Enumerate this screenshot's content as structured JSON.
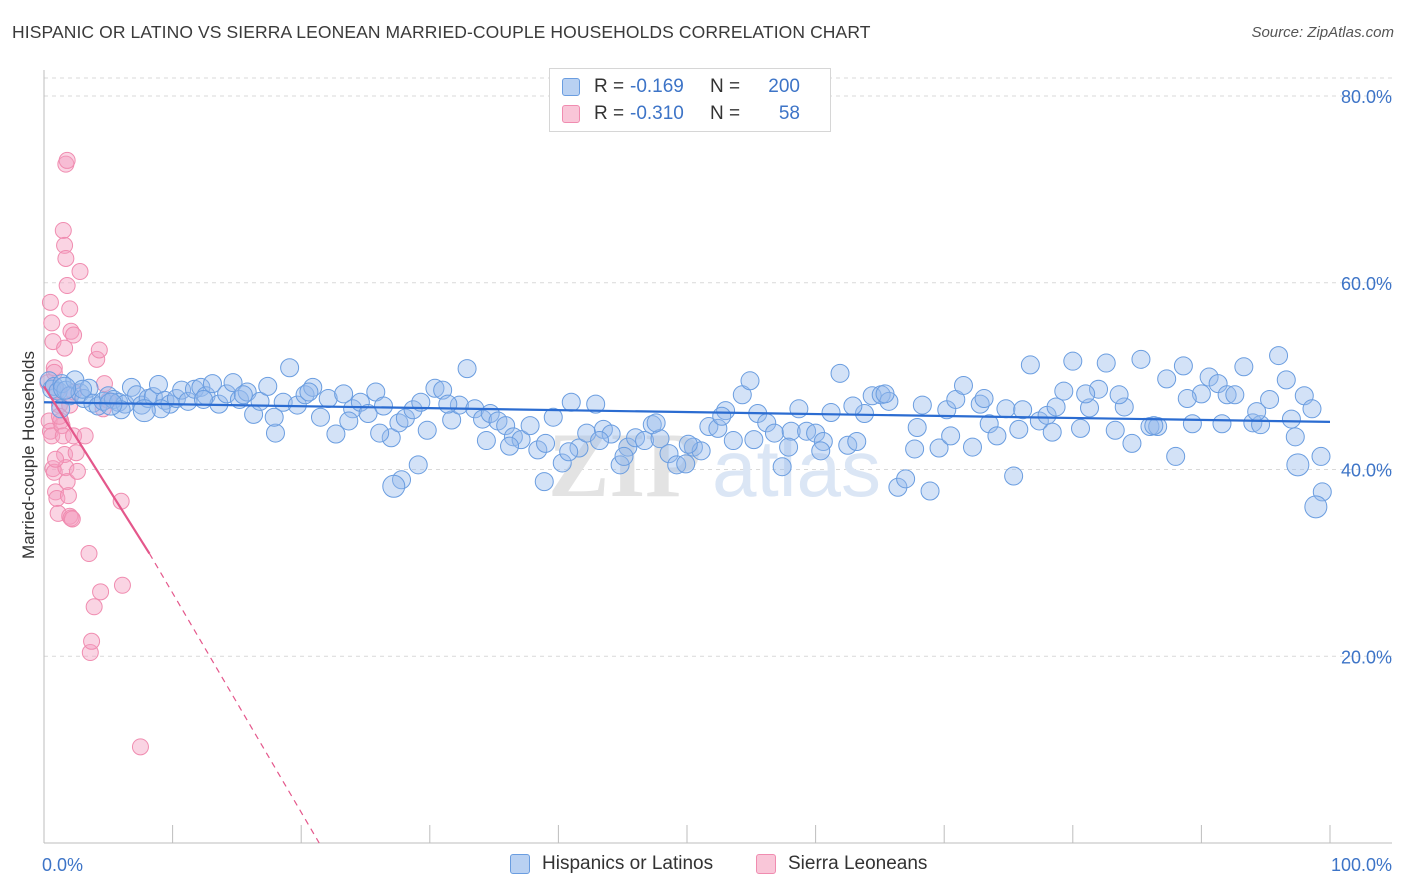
{
  "title": "HISPANIC OR LATINO VS SIERRA LEONEAN MARRIED-COUPLE HOUSEHOLDS CORRELATION CHART",
  "source": "Source: ZipAtlas.com",
  "watermark": {
    "zip": "ZIP",
    "atlas": "atlas"
  },
  "colors": {
    "blue": "#6a9de0",
    "blue_line": "#2b6cd1",
    "pink": "#f08cb0",
    "pink_line": "#e4578b",
    "axis_text": "#3d74c7",
    "grid": "#d9d9d9"
  },
  "legend": {
    "rows": [
      {
        "r_label": "R =",
        "r_value": "-0.169",
        "n_label": "N =",
        "n_value": "200"
      },
      {
        "r_label": "R =",
        "r_value": "-0.310",
        "n_label": "N =",
        "n_value": "58"
      }
    ]
  },
  "bottom_legend": [
    {
      "label": "Hispanics or Latinos"
    },
    {
      "label": "Sierra Leoneans"
    }
  ],
  "chart_data": {
    "type": "scatter",
    "title": "HISPANIC OR LATINO VS SIERRA LEONEAN MARRIED-COUPLE HOUSEHOLDS CORRELATION CHART",
    "xlabel": "",
    "ylabel": "Married-couple Households",
    "xlim": [
      0,
      100
    ],
    "ylim": [
      0,
      82
    ],
    "x_tick_labels": [
      "0.0%",
      "100.0%"
    ],
    "y_ticks": [
      20,
      40,
      60,
      80
    ],
    "y_tick_labels": [
      "20.0%",
      "40.0%",
      "60.0%",
      "80.0%"
    ],
    "grid": true,
    "legend_position": "top-center",
    "series": [
      {
        "name": "Hispanics or Latinos",
        "r": -0.169,
        "n": 200,
        "trend": {
          "x": [
            0,
            100
          ],
          "y": [
            47.2,
            45.1
          ],
          "dashed_from": null
        },
        "points": [
          [
            0.4,
            49.5
          ],
          [
            0.6,
            48.6
          ],
          [
            0.8,
            48.9
          ],
          [
            1.1,
            48.4
          ],
          [
            1.4,
            49.2
          ],
          [
            1.7,
            48.5
          ],
          [
            2,
            47.9
          ],
          [
            2.4,
            49.6
          ],
          [
            2.8,
            48.2
          ],
          [
            3.1,
            47.6
          ],
          [
            3.5,
            48.7
          ],
          [
            3.8,
            47.1
          ],
          [
            4.2,
            46.8
          ],
          [
            4.6,
            47.3
          ],
          [
            5,
            47.9
          ],
          [
            5.4,
            47.5
          ],
          [
            5.8,
            47.2
          ],
          [
            6.3,
            47.0
          ],
          [
            6.8,
            48.8
          ],
          [
            7.2,
            48.0
          ],
          [
            7.6,
            46.9
          ],
          [
            8.1,
            47.6
          ],
          [
            8.5,
            47.8
          ],
          [
            8.9,
            49.1
          ],
          [
            9.4,
            47.4
          ],
          [
            9.8,
            47.0
          ],
          [
            10.3,
            47.6
          ],
          [
            10.7,
            48.5
          ],
          [
            11.2,
            47.3
          ],
          [
            11.7,
            48.6
          ],
          [
            12.2,
            48.8
          ],
          [
            12.6,
            47.9
          ],
          [
            13.1,
            49.2
          ],
          [
            13.6,
            47.0
          ],
          [
            14.2,
            48.1
          ],
          [
            14.7,
            49.3
          ],
          [
            15.2,
            47.5
          ],
          [
            15.8,
            48.3
          ],
          [
            16.3,
            45.9
          ],
          [
            16.8,
            47.3
          ],
          [
            17.4,
            48.9
          ],
          [
            18,
            43.9
          ],
          [
            18.6,
            47.2
          ],
          [
            19.1,
            50.9
          ],
          [
            19.7,
            46.9
          ],
          [
            20.3,
            48.0
          ],
          [
            20.9,
            48.8
          ],
          [
            21.5,
            45.6
          ],
          [
            22.1,
            47.6
          ],
          [
            22.7,
            43.8
          ],
          [
            23.3,
            48.1
          ],
          [
            24,
            46.5
          ],
          [
            24.6,
            47.2
          ],
          [
            25.2,
            46.0
          ],
          [
            25.8,
            48.3
          ],
          [
            26.4,
            46.8
          ],
          [
            27,
            43.4
          ],
          [
            27.6,
            45.0
          ],
          [
            28.1,
            45.5
          ],
          [
            28.7,
            46.4
          ],
          [
            29.3,
            47.2
          ],
          [
            29.8,
            44.2
          ],
          [
            30.4,
            48.7
          ],
          [
            31,
            48.5
          ],
          [
            31.7,
            45.3
          ],
          [
            32.3,
            46.9
          ],
          [
            32.9,
            50.8
          ],
          [
            33.5,
            46.5
          ],
          [
            34.1,
            45.4
          ],
          [
            34.7,
            46.0
          ],
          [
            35.3,
            45.2
          ],
          [
            35.9,
            44.7
          ],
          [
            36.5,
            43.5
          ],
          [
            37.1,
            43.2
          ],
          [
            37.8,
            44.7
          ],
          [
            38.4,
            42.1
          ],
          [
            39,
            42.8
          ],
          [
            39.6,
            45.6
          ],
          [
            40.3,
            40.7
          ],
          [
            41,
            47.2
          ],
          [
            41.6,
            42.3
          ],
          [
            42.2,
            43.9
          ],
          [
            42.9,
            47.0
          ],
          [
            43.5,
            44.3
          ],
          [
            44.1,
            43.8
          ],
          [
            44.8,
            40.5
          ],
          [
            45.4,
            42.4
          ],
          [
            46,
            43.4
          ],
          [
            46.7,
            43.1
          ],
          [
            47.3,
            44.8
          ],
          [
            47.9,
            43.3
          ],
          [
            48.6,
            41.7
          ],
          [
            49.2,
            40.5
          ],
          [
            49.9,
            40.6
          ],
          [
            50.5,
            42.4
          ],
          [
            51.1,
            42.0
          ],
          [
            51.7,
            44.6
          ],
          [
            52.4,
            44.4
          ],
          [
            53,
            46.3
          ],
          [
            53.6,
            43.1
          ],
          [
            54.3,
            48.0
          ],
          [
            54.9,
            49.5
          ],
          [
            55.5,
            46.0
          ],
          [
            56.2,
            45.0
          ],
          [
            56.8,
            43.9
          ],
          [
            57.4,
            40.3
          ],
          [
            58.1,
            44.1
          ],
          [
            58.7,
            46.5
          ],
          [
            59.3,
            44.1
          ],
          [
            60,
            43.9
          ],
          [
            60.6,
            43.0
          ],
          [
            61.2,
            46.1
          ],
          [
            61.9,
            50.3
          ],
          [
            62.5,
            42.6
          ],
          [
            63.2,
            43.0
          ],
          [
            63.8,
            46.0
          ],
          [
            64.4,
            47.9
          ],
          [
            65.1,
            48.0
          ],
          [
            65.7,
            47.3
          ],
          [
            66.4,
            38.1
          ],
          [
            67,
            39.0
          ],
          [
            67.7,
            42.2
          ],
          [
            68.3,
            46.9
          ],
          [
            68.9,
            37.7
          ],
          [
            69.6,
            42.3
          ],
          [
            70.2,
            46.4
          ],
          [
            70.9,
            47.5
          ],
          [
            71.5,
            49.0
          ],
          [
            72.2,
            42.4
          ],
          [
            72.8,
            47.0
          ],
          [
            73.5,
            44.9
          ],
          [
            74.1,
            43.6
          ],
          [
            74.8,
            46.5
          ],
          [
            75.4,
            39.3
          ],
          [
            76.1,
            46.4
          ],
          [
            76.7,
            51.2
          ],
          [
            77.4,
            45.2
          ],
          [
            78,
            45.8
          ],
          [
            78.7,
            46.7
          ],
          [
            79.3,
            48.4
          ],
          [
            80,
            51.6
          ],
          [
            80.6,
            44.4
          ],
          [
            81.3,
            46.6
          ],
          [
            82,
            48.6
          ],
          [
            82.6,
            51.4
          ],
          [
            83.3,
            44.2
          ],
          [
            84,
            46.7
          ],
          [
            84.6,
            42.8
          ],
          [
            85.3,
            51.8
          ],
          [
            86,
            44.6
          ],
          [
            86.6,
            44.6
          ],
          [
            87.3,
            49.7
          ],
          [
            88,
            41.4
          ],
          [
            88.6,
            51.1
          ],
          [
            89.3,
            44.9
          ],
          [
            90,
            48.1
          ],
          [
            90.6,
            49.9
          ],
          [
            91.3,
            49.2
          ],
          [
            92,
            48.0
          ],
          [
            92.6,
            48.0
          ],
          [
            93.3,
            51.0
          ],
          [
            94,
            45.0
          ],
          [
            94.6,
            44.8
          ],
          [
            95.3,
            47.5
          ],
          [
            96,
            52.2
          ],
          [
            96.6,
            49.6
          ],
          [
            97.3,
            43.5
          ],
          [
            98,
            47.9
          ],
          [
            98.6,
            46.5
          ],
          [
            99.3,
            41.4
          ],
          [
            1.3,
            46.5
          ],
          [
            3,
            48.6
          ],
          [
            6,
            46.4
          ],
          [
            9.1,
            46.5
          ],
          [
            12.4,
            47.5
          ],
          [
            15.5,
            48.0
          ],
          [
            17.9,
            45.6
          ],
          [
            20.6,
            48.3
          ],
          [
            23.7,
            45.2
          ],
          [
            26.1,
            43.9
          ],
          [
            27.8,
            38.9
          ],
          [
            29.1,
            40.5
          ],
          [
            31.4,
            47.0
          ],
          [
            34.4,
            43.1
          ],
          [
            36.2,
            42.5
          ],
          [
            38.9,
            38.7
          ],
          [
            40.8,
            41.9
          ],
          [
            43.2,
            43.1
          ],
          [
            45.1,
            41.4
          ],
          [
            47.6,
            45.0
          ],
          [
            50.1,
            42.7
          ],
          [
            52.7,
            45.7
          ],
          [
            55.2,
            43.2
          ],
          [
            57.9,
            42.4
          ],
          [
            60.4,
            42.0
          ],
          [
            62.9,
            46.8
          ],
          [
            65.4,
            48.1
          ],
          [
            67.9,
            44.5
          ],
          [
            70.5,
            43.6
          ],
          [
            73.1,
            47.6
          ],
          [
            75.8,
            44.3
          ],
          [
            78.4,
            44.0
          ],
          [
            81,
            48.1
          ],
          [
            83.6,
            48.0
          ],
          [
            86.3,
            44.7
          ],
          [
            88.9,
            47.6
          ],
          [
            91.6,
            44.9
          ],
          [
            94.3,
            46.2
          ],
          [
            97,
            45.4
          ],
          [
            99.4,
            37.6
          ]
        ],
        "large_points": [
          [
            1.6,
            48.7
          ],
          [
            5.2,
            47.0
          ],
          [
            7.8,
            46.3
          ],
          [
            27.2,
            38.2
          ],
          [
            98.9,
            36.0
          ],
          [
            97.5,
            40.5
          ]
        ]
      },
      {
        "name": "Sierra Leoneans",
        "r": -0.31,
        "n": 58,
        "trend": {
          "x": [
            0,
            8.2,
            21.4
          ],
          "y": [
            48.9,
            31.0,
            0
          ],
          "dashed_from": 8.2
        },
        "points": [
          [
            0.3,
            49.3
          ],
          [
            0.4,
            45.2
          ],
          [
            0.5,
            44.1
          ],
          [
            0.6,
            43.6
          ],
          [
            0.7,
            40.1
          ],
          [
            0.8,
            39.7
          ],
          [
            0.9,
            37.6
          ],
          [
            1.0,
            36.9
          ],
          [
            1.1,
            35.3
          ],
          [
            0.5,
            57.9
          ],
          [
            0.6,
            55.7
          ],
          [
            0.7,
            53.7
          ],
          [
            0.8,
            50.9
          ],
          [
            1.0,
            48.4
          ],
          [
            1.2,
            46.9
          ],
          [
            1.3,
            45.2
          ],
          [
            1.4,
            44.7
          ],
          [
            1.5,
            43.6
          ],
          [
            1.6,
            41.6
          ],
          [
            1.7,
            40.2
          ],
          [
            1.8,
            38.7
          ],
          [
            1.9,
            37.2
          ],
          [
            2.0,
            35.0
          ],
          [
            2.1,
            34.8
          ],
          [
            2.2,
            34.7
          ],
          [
            1.5,
            65.6
          ],
          [
            1.6,
            64.0
          ],
          [
            1.7,
            62.6
          ],
          [
            1.8,
            59.7
          ],
          [
            2.0,
            57.2
          ],
          [
            2.1,
            54.8
          ],
          [
            2.3,
            54.4
          ],
          [
            1.6,
            53.0
          ],
          [
            1.7,
            72.7
          ],
          [
            1.8,
            73.1
          ],
          [
            2.0,
            46.9
          ],
          [
            2.3,
            43.6
          ],
          [
            2.5,
            41.8
          ],
          [
            2.6,
            39.8
          ],
          [
            2.3,
            48.3
          ],
          [
            2.8,
            61.2
          ],
          [
            3.2,
            43.6
          ],
          [
            3.5,
            31.0
          ],
          [
            3.6,
            20.4
          ],
          [
            3.7,
            21.6
          ],
          [
            4.1,
            51.8
          ],
          [
            4.3,
            52.8
          ],
          [
            4.6,
            46.5
          ],
          [
            4.7,
            49.2
          ],
          [
            5.0,
            47.4
          ],
          [
            4.4,
            26.9
          ],
          [
            3.9,
            25.3
          ],
          [
            7.5,
            10.3
          ],
          [
            6.1,
            27.6
          ],
          [
            6.0,
            36.6
          ],
          [
            0.8,
            50.4
          ],
          [
            1.2,
            45.7
          ],
          [
            0.9,
            41.1
          ]
        ]
      }
    ]
  }
}
